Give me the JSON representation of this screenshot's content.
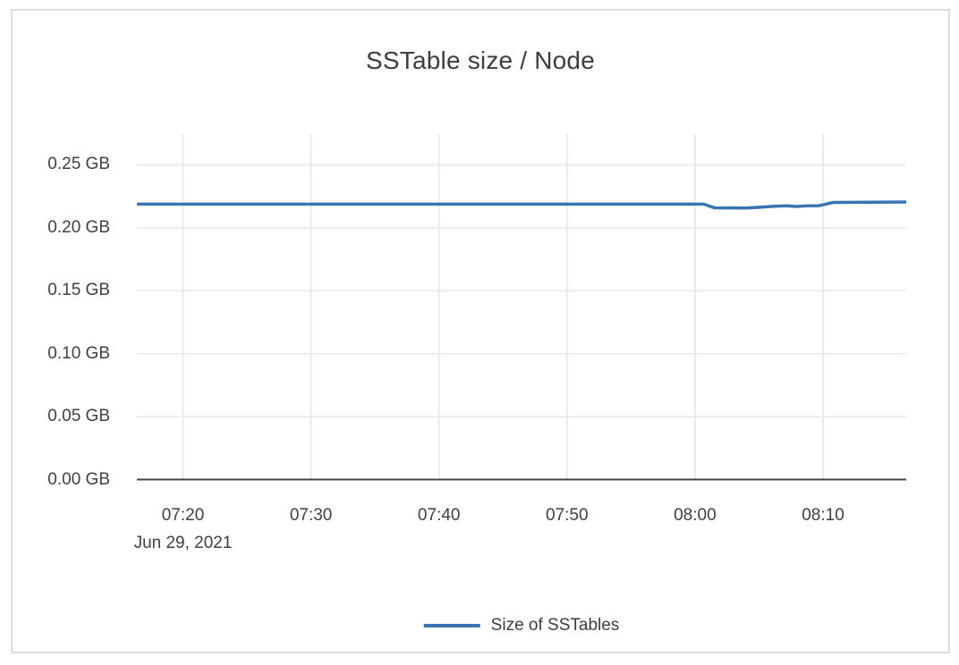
{
  "window": {
    "background": "#ffffff",
    "card_border_color": "#dcdcdc"
  },
  "chart_data": {
    "type": "line",
    "title": "SSTable size / Node",
    "grid": true,
    "legend_position": "bottom-center",
    "colors": {
      "grid": "#ebebeb",
      "axis_line": "#444444",
      "tick_text": "#3f3f3f",
      "title_text": "#3d3d3d"
    },
    "x_axis": {
      "date_label": "Jun 29, 2021",
      "range_minutes_since_0700": [
        16.4,
        76.5
      ],
      "ticks": [
        {
          "minutes": 20,
          "label": "07:20"
        },
        {
          "minutes": 30,
          "label": "07:30"
        },
        {
          "minutes": 40,
          "label": "07:40"
        },
        {
          "minutes": 50,
          "label": "07:50"
        },
        {
          "minutes": 60,
          "label": "08:00"
        },
        {
          "minutes": 70,
          "label": "08:10"
        }
      ]
    },
    "y_axis": {
      "unit": "GB",
      "range_gb": [
        0,
        0.2745
      ],
      "ticks": [
        {
          "value": 0.0,
          "label": "0.00 GB"
        },
        {
          "value": 0.05,
          "label": "0.05 GB"
        },
        {
          "value": 0.1,
          "label": "0.10 GB"
        },
        {
          "value": 0.15,
          "label": "0.15 GB"
        },
        {
          "value": 0.2,
          "label": "0.20 GB"
        },
        {
          "value": 0.25,
          "label": "0.25 GB"
        }
      ]
    },
    "series": [
      {
        "name": "Size of SSTables",
        "color": "#3875b2",
        "line_width": 3.5,
        "points_min_gb": [
          [
            16.4,
            0.2188
          ],
          [
            60.7,
            0.2188
          ],
          [
            61.5,
            0.2159
          ],
          [
            64.0,
            0.2158
          ],
          [
            65.2,
            0.2165
          ],
          [
            66.2,
            0.2172
          ],
          [
            67.2,
            0.2175
          ],
          [
            67.9,
            0.217
          ],
          [
            68.8,
            0.2175
          ],
          [
            69.7,
            0.2176
          ],
          [
            70.8,
            0.2202
          ],
          [
            76.5,
            0.2205
          ]
        ]
      }
    ]
  }
}
